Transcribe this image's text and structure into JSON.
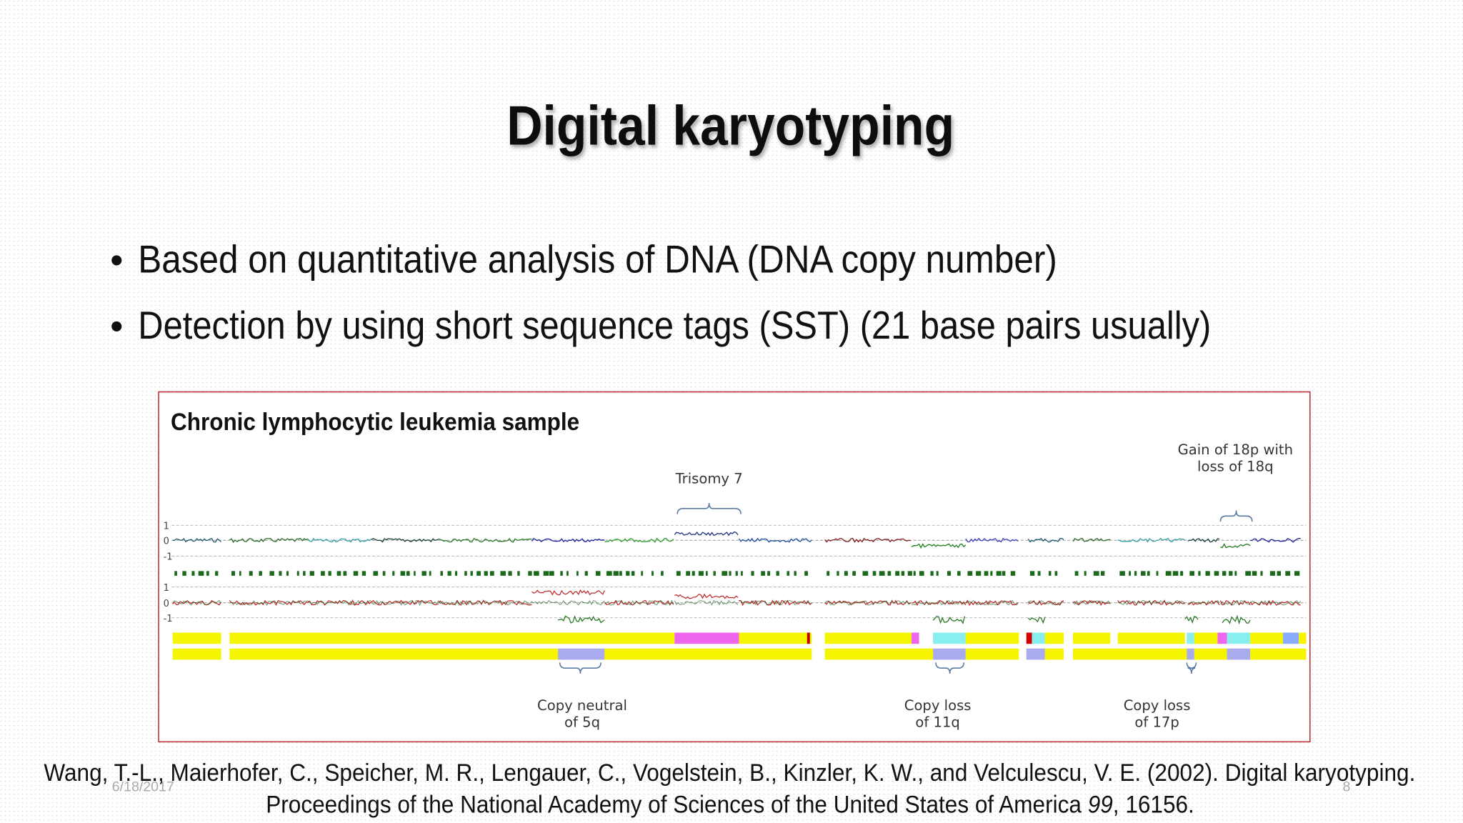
{
  "title": "Digital karyotyping",
  "bullets": [
    "Based on quantitative analysis of DNA  (DNA copy number)",
    "Detection by using short sequence tags (SST) (21 base pairs usually)"
  ],
  "figure": {
    "title": "Chronic lymphocytic leukemia sample",
    "axis_labels": [
      "1",
      "0",
      "-1"
    ],
    "annotations": [
      {
        "lines": [
          "Trisomy 7"
        ]
      },
      {
        "lines": [
          "Gain of 18p with",
          "loss of 18q"
        ]
      },
      {
        "lines": [
          "Copy neutral",
          "of 5q"
        ]
      },
      {
        "lines": [
          "Copy loss",
          "of 11q"
        ]
      },
      {
        "lines": [
          "Copy loss",
          "of 17p"
        ]
      }
    ]
  },
  "citation": {
    "line1": "Wang, T.-L., Maierhofer, C., Speicher, M. R., Lengauer, C., Vogelstein, B., Kinzler, K. W., and Velculescu, V. E. (2002). Digital karyotyping.",
    "line2_parts": [
      "Proceedings of the National Academy of Sciences of the United States of America ",
      "99",
      ", 16156."
    ]
  },
  "footer": {
    "date": "6/18/2017",
    "page": "8"
  }
}
